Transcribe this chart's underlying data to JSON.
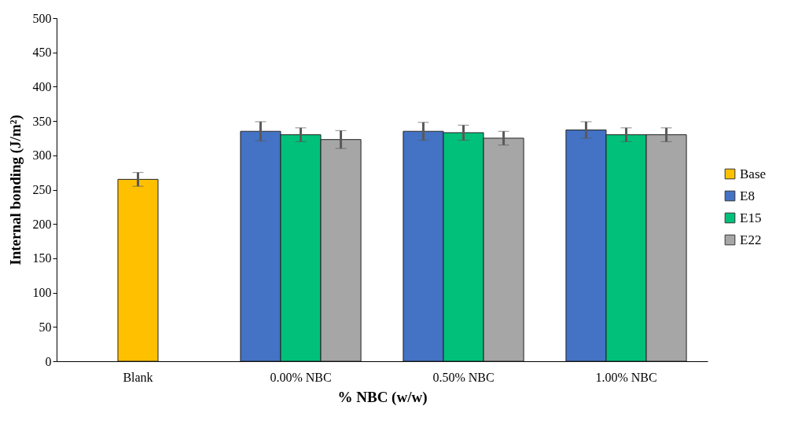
{
  "chart_data": {
    "type": "bar",
    "xlabel": "% NBC (w/w)",
    "ylabel": "Internal bonding (J/m²)",
    "categories": [
      "Blank",
      "0.00% NBC",
      "0.50% NBC",
      "1.00% NBC"
    ],
    "series": [
      {
        "name": "Base",
        "color": "#ffc000",
        "values": [
          265,
          null,
          null,
          null
        ],
        "errors": [
          10,
          null,
          null,
          null
        ]
      },
      {
        "name": "E8",
        "color": "#4472c4",
        "values": [
          null,
          335,
          335,
          337
        ],
        "errors": [
          null,
          14,
          13,
          12
        ]
      },
      {
        "name": "E15",
        "color": "#00c07a",
        "values": [
          null,
          330,
          333,
          330
        ],
        "errors": [
          null,
          10,
          11,
          10
        ]
      },
      {
        "name": "E22",
        "color": "#a6a6a6",
        "values": [
          null,
          323,
          325,
          330
        ],
        "errors": [
          null,
          13,
          10,
          10
        ]
      }
    ],
    "ylim": [
      0,
      500
    ],
    "yticks": [
      0,
      50,
      100,
      150,
      200,
      250,
      300,
      350,
      400,
      450,
      500
    ],
    "legend": "right"
  }
}
